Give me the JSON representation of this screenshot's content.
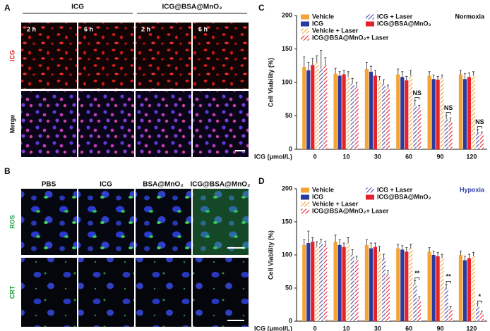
{
  "panels": {
    "A": {
      "label": "A",
      "column_groups": [
        "ICG",
        "ICG@BSA@MnO₂"
      ],
      "time_labels": [
        "2 h",
        "6 h",
        "2 h",
        "6 h"
      ],
      "row_labels": [
        "ICG",
        "Merge"
      ]
    },
    "B": {
      "label": "B",
      "columns": [
        "PBS",
        "ICG",
        "BSA@MnO₂",
        "ICG@BSA@MnO₂"
      ],
      "row_labels": [
        "ROS",
        "CRT"
      ]
    }
  },
  "chart_data": [
    {
      "type": "bar",
      "label": "C",
      "condition": "Normoxia",
      "condition_color": "#000000",
      "xlabel": "ICG (μmol/L)",
      "ylabel": "Cell Viability (%)",
      "categories": [
        "0",
        "10",
        "30",
        "60",
        "90",
        "120"
      ],
      "ylim": [
        0,
        200
      ],
      "yticks": [
        0,
        50,
        100,
        150,
        200
      ],
      "series": [
        {
          "name": "Vehicle",
          "color": "#f5a334",
          "hatch": false,
          "values": [
            123,
            113,
            120,
            112,
            110,
            112
          ],
          "errors": [
            15,
            8,
            10,
            8,
            6,
            6
          ]
        },
        {
          "name": "ICG",
          "color": "#2b3a9e",
          "hatch": false,
          "values": [
            118,
            110,
            116,
            108,
            105,
            105
          ],
          "errors": [
            12,
            6,
            8,
            8,
            6,
            8
          ]
        },
        {
          "name": "ICG@BSA@MnO₂",
          "color": "#e62129",
          "hatch": false,
          "values": [
            126,
            112,
            110,
            103,
            104,
            108
          ],
          "errors": [
            10,
            6,
            8,
            6,
            5,
            6
          ]
        },
        {
          "name": "Vehicle + Laser",
          "color": "#f5a334",
          "hatch": true,
          "values": [
            130,
            108,
            103,
            110,
            106,
            110
          ],
          "errors": [
            10,
            8,
            6,
            8,
            5,
            6
          ]
        },
        {
          "name": "ICG + Laser",
          "color": "#4a4aa8",
          "hatch": true,
          "values": [
            120,
            98,
            98,
            65,
            45,
            25
          ],
          "errors": [
            28,
            8,
            6,
            8,
            6,
            5
          ]
        },
        {
          "name": "ICG@BSA@MnO₂+ Laser",
          "color": "#e62129",
          "hatch": true,
          "values": [
            125,
            92,
            90,
            60,
            42,
            22
          ],
          "errors": [
            12,
            8,
            6,
            6,
            5,
            4
          ]
        }
      ],
      "annotations": [
        {
          "text": "NS",
          "category": "60"
        },
        {
          "text": "NS",
          "category": "90"
        },
        {
          "text": "NS",
          "category": "120"
        }
      ]
    },
    {
      "type": "bar",
      "label": "D",
      "condition": "Hypoxia",
      "condition_color": "#2b3a9e",
      "xlabel": "ICG (μmol/L)",
      "ylabel": "Cell Viability (%)",
      "categories": [
        "0",
        "10",
        "30",
        "60",
        "90",
        "120"
      ],
      "ylim": [
        0,
        200
      ],
      "yticks": [
        0,
        50,
        100,
        150,
        200
      ],
      "series": [
        {
          "name": "Vehicle",
          "color": "#f5a334",
          "hatch": false,
          "values": [
            115,
            120,
            115,
            110,
            105,
            100
          ],
          "errors": [
            8,
            10,
            8,
            6,
            6,
            6
          ]
        },
        {
          "name": "ICG",
          "color": "#2b3a9e",
          "hatch": false,
          "values": [
            118,
            115,
            110,
            108,
            100,
            92
          ],
          "errors": [
            18,
            8,
            8,
            6,
            6,
            6
          ]
        },
        {
          "name": "ICG@BSA@MnO₂",
          "color": "#e62129",
          "hatch": false,
          "values": [
            120,
            112,
            112,
            105,
            98,
            95
          ],
          "errors": [
            6,
            6,
            6,
            6,
            6,
            6
          ]
        },
        {
          "name": "Vehicle + Laser",
          "color": "#f5a334",
          "hatch": true,
          "values": [
            112,
            118,
            105,
            110,
            95,
            98
          ],
          "errors": [
            8,
            8,
            8,
            6,
            6,
            6
          ]
        },
        {
          "name": "ICG + Laser",
          "color": "#4a4aa8",
          "hatch": true,
          "values": [
            118,
            100,
            95,
            55,
            50,
            22
          ],
          "errors": [
            6,
            8,
            6,
            6,
            6,
            4
          ]
        },
        {
          "name": "ICG@BSA@MnO₂+ Laser",
          "color": "#e62129",
          "hatch": true,
          "values": [
            115,
            92,
            70,
            32,
            18,
            12
          ],
          "errors": [
            6,
            6,
            6,
            5,
            4,
            3
          ]
        }
      ],
      "annotations": [
        {
          "text": "**",
          "category": "60"
        },
        {
          "text": "**",
          "category": "90"
        },
        {
          "text": "*",
          "category": "120"
        }
      ]
    }
  ]
}
